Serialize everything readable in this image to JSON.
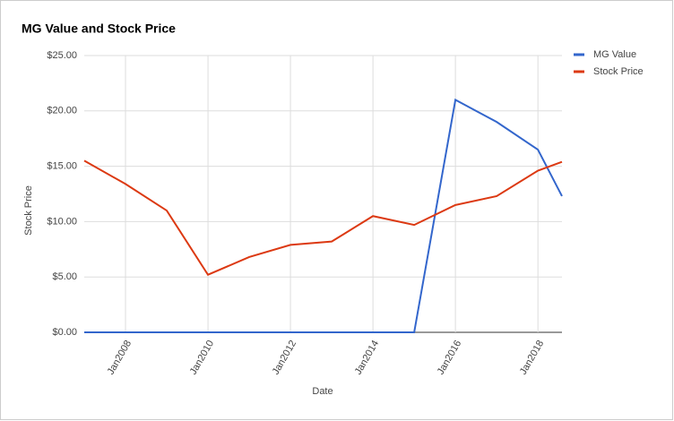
{
  "chart_data": {
    "type": "line",
    "title": "MG Value and Stock Price",
    "x_label": "Date",
    "y_label": "Stock Price",
    "x": [
      "2007-01",
      "2008-01",
      "2009-01",
      "2010-01",
      "2011-01",
      "2012-01",
      "2013-01",
      "2014-01",
      "2015-01",
      "2016-01",
      "2017-01",
      "2018-01",
      "2018-08"
    ],
    "series": [
      {
        "name": "MG Value",
        "color": "#3366cc",
        "values": [
          0,
          0,
          0,
          0,
          0,
          0,
          0,
          0,
          0,
          21.0,
          19.0,
          16.5,
          12.3
        ]
      },
      {
        "name": "Stock Price",
        "color": "#dc3912",
        "values": [
          15.5,
          13.4,
          11.0,
          5.2,
          6.8,
          7.9,
          8.2,
          10.5,
          9.7,
          11.5,
          12.3,
          14.6,
          15.4
        ]
      }
    ],
    "xlim": [
      "2007-01",
      "2018-08"
    ],
    "xticks": [
      {
        "value": "2008-01",
        "label": "Jan2008"
      },
      {
        "value": "2010-01",
        "label": "Jan2010"
      },
      {
        "value": "2012-01",
        "label": "Jan2012"
      },
      {
        "value": "2014-01",
        "label": "Jan2014"
      },
      {
        "value": "2016-01",
        "label": "Jan2016"
      },
      {
        "value": "2018-01",
        "label": "Jan2018"
      }
    ],
    "ylim": [
      0,
      25
    ],
    "yticks": [
      {
        "value": 0,
        "label": "$0.00"
      },
      {
        "value": 5,
        "label": "$5.00"
      },
      {
        "value": 10,
        "label": "$10.00"
      },
      {
        "value": 15,
        "label": "$15.00"
      },
      {
        "value": 20,
        "label": "$20.00"
      },
      {
        "value": 25,
        "label": "$25.00"
      }
    ],
    "grid": true,
    "legend": "right"
  }
}
